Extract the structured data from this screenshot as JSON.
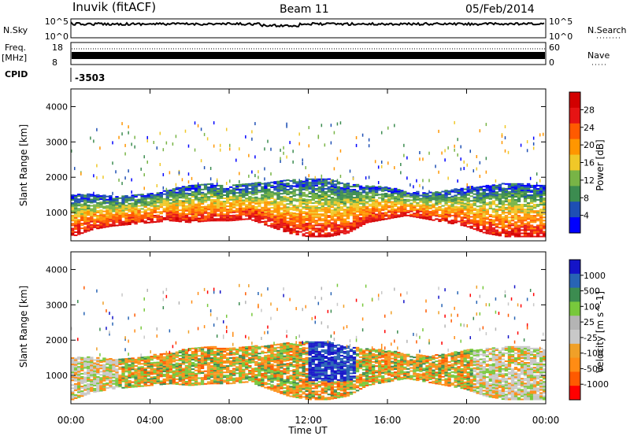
{
  "header": {
    "station": "Inuvik (fitACF)",
    "beam": "Beam 11",
    "date": "05/Feb/2014"
  },
  "top_panels": {
    "nsky_label": "N.Sky",
    "nsky_ticks": [
      "10^5",
      "10^0"
    ],
    "nsearch_ticks": [
      "10^5",
      "10^0"
    ],
    "nsearch_label": "N.Search",
    "freq_label": "Freq.",
    "freq_unit": "[MHz]",
    "freq_ticks": [
      "18",
      "8"
    ],
    "nave_ticks": [
      "60",
      "0"
    ],
    "nave_label": "Nave",
    "cpid_label": "CPID",
    "cpid_value": "-3503"
  },
  "colors": {
    "power_scale": [
      "#0000ff",
      "#1e4fb4",
      "#3c8c50",
      "#78b446",
      "#f0c828",
      "#ff9600",
      "#ff5a00",
      "#e61414",
      "#d20000"
    ],
    "velocity_scale": [
      "#ff0000",
      "#ff5a00",
      "#ff8c14",
      "#f0a028",
      "#c8c8c8",
      "#b4b4b4",
      "#78c83c",
      "#3c8c50",
      "#2864b4",
      "#1414c8"
    ]
  },
  "chart_data": [
    {
      "type": "heatmap",
      "name": "power",
      "ylabel": "Slant Range [km]",
      "ylim": [
        200,
        4500
      ],
      "yticks": [
        "4000",
        "3000",
        "2000",
        "1000"
      ],
      "colorbar_label": "Power [dB]",
      "colorbar_ticks": [
        "28",
        "24",
        "20",
        "16",
        "12",
        "8",
        "4"
      ],
      "band_lower_km": [
        300,
        500,
        600,
        650,
        700,
        750,
        700,
        750,
        750,
        800,
        600,
        400,
        300,
        300,
        400,
        700,
        800,
        900,
        800,
        700,
        600,
        400,
        300,
        300,
        300
      ],
      "band_upper_km": [
        1500,
        1500,
        1450,
        1500,
        1550,
        1650,
        1750,
        1800,
        1750,
        1800,
        1850,
        1900,
        1950,
        1950,
        1800,
        1750,
        1700,
        1600,
        1550,
        1600,
        1700,
        1750,
        1800,
        1800,
        1750
      ]
    },
    {
      "type": "heatmap",
      "name": "velocity",
      "ylabel": "Slant Range [km]",
      "ylim": [
        200,
        4500
      ],
      "yticks": [
        "4000",
        "3000",
        "2000",
        "1000"
      ],
      "colorbar_label": "Velocity [m s^-1]",
      "colorbar_ticks": [
        "1000",
        "500",
        "100",
        "25",
        "-25",
        "-100",
        "-500",
        "-1000"
      ],
      "xlabel": "Time UT",
      "xticks": [
        "00:00",
        "04:00",
        "08:00",
        "12:00",
        "16:00",
        "20:00",
        "00:00"
      ],
      "band_lower_km": [
        300,
        500,
        600,
        650,
        700,
        750,
        700,
        750,
        750,
        800,
        600,
        400,
        300,
        300,
        400,
        700,
        800,
        900,
        800,
        700,
        600,
        400,
        300,
        300,
        300
      ],
      "band_upper_km": [
        1500,
        1500,
        1450,
        1500,
        1550,
        1650,
        1750,
        1800,
        1750,
        1800,
        1850,
        1900,
        1950,
        1950,
        1800,
        1750,
        1700,
        1600,
        1550,
        1600,
        1700,
        1750,
        1800,
        1800,
        1750
      ]
    }
  ]
}
